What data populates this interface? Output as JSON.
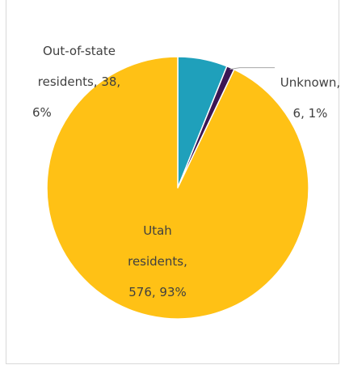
{
  "chart_data": {
    "type": "pie",
    "slices": [
      {
        "category": "Out-of-state residents",
        "value": 38,
        "percent": "6%",
        "color": "#1fa0bb"
      },
      {
        "category": "Unknown",
        "value": 6,
        "percent": "1%",
        "color": "#3c1654"
      },
      {
        "category": "Utah residents",
        "value": 576,
        "percent": "93%",
        "color": "#ffc115"
      }
    ],
    "labels": {
      "out_of_state": [
        "Out-of-state",
        "residents, 38,",
        "6%"
      ],
      "unknown": [
        "Unknown,",
        "6, 1%"
      ],
      "utah": [
        "Utah",
        "residents,",
        "576, 93%"
      ]
    },
    "start_angle": "top",
    "direction": "clockwise",
    "slice_border_color": "#ffffff",
    "leader_line_color": "#a6a6a6",
    "label_color": "#404040"
  }
}
